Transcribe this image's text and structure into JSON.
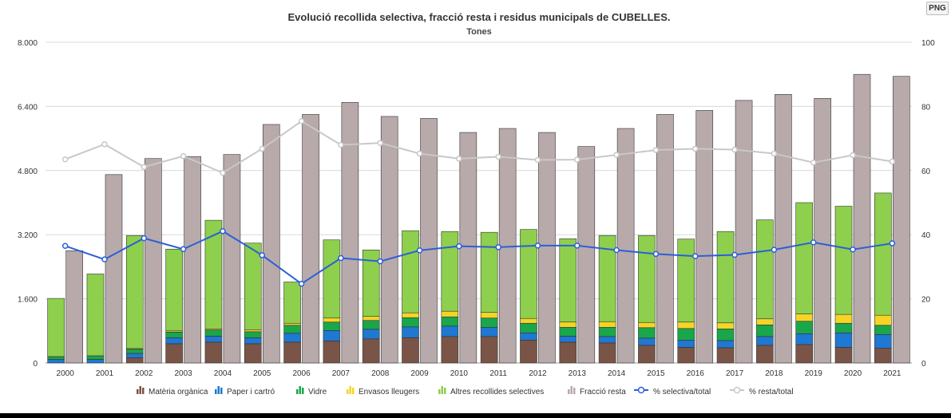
{
  "toolbar": {
    "png_label": "PNG"
  },
  "chart_data": {
    "type": "bar",
    "title": "Evolució recollida selectiva, fracció resta i residus municipals de CUBELLES.",
    "subtitle": "Tones",
    "categories": [
      "2000",
      "2001",
      "2002",
      "2003",
      "2004",
      "2005",
      "2006",
      "2007",
      "2008",
      "2009",
      "2010",
      "2011",
      "2012",
      "2013",
      "2014",
      "2015",
      "2016",
      "2017",
      "2018",
      "2019",
      "2020",
      "2021"
    ],
    "y_left": {
      "min": 0,
      "max": 8000,
      "ticks": [
        "0",
        "1.600",
        "3.200",
        "4.800",
        "6.400",
        "8.000"
      ]
    },
    "y_right": {
      "min": 0,
      "max": 100,
      "ticks": [
        "0",
        "20",
        "40",
        "60",
        "80",
        "100"
      ]
    },
    "stacked_series": [
      {
        "name": "Matèria orgànica",
        "color": "#7a5446",
        "values": [
          0,
          0,
          130,
          480,
          520,
          480,
          520,
          550,
          600,
          630,
          660,
          660,
          570,
          520,
          500,
          440,
          390,
          380,
          440,
          460,
          390,
          370
        ]
      },
      {
        "name": "Paper i cartró",
        "color": "#1f78d1",
        "values": [
          90,
          90,
          110,
          150,
          150,
          150,
          220,
          260,
          240,
          270,
          260,
          230,
          180,
          150,
          160,
          180,
          180,
          180,
          220,
          270,
          360,
          340
        ]
      },
      {
        "name": "Vidre",
        "color": "#1aa64a",
        "values": [
          70,
          90,
          100,
          140,
          150,
          150,
          200,
          210,
          220,
          230,
          230,
          230,
          240,
          220,
          230,
          260,
          290,
          290,
          290,
          310,
          240,
          230
        ]
      },
      {
        "name": "Envasos lleugers",
        "color": "#f6d426",
        "values": [
          0,
          0,
          20,
          30,
          30,
          50,
          50,
          100,
          100,
          120,
          140,
          140,
          120,
          130,
          140,
          130,
          160,
          150,
          150,
          180,
          220,
          250
        ]
      },
      {
        "name": "Altres recollides selectives",
        "color": "#8ecf4d",
        "values": [
          1450,
          2040,
          2820,
          2040,
          2710,
          2160,
          1030,
          1950,
          1660,
          2050,
          1990,
          2000,
          2220,
          2080,
          2150,
          2170,
          2070,
          2280,
          2470,
          2780,
          2700,
          3050
        ]
      }
    ],
    "resta_series": {
      "name": "Fracció resta",
      "color": "#b8aaaa",
      "values": [
        2800,
        4700,
        5100,
        5150,
        5200,
        5950,
        6200,
        6500,
        6150,
        6100,
        5750,
        5850,
        5750,
        5400,
        5850,
        6200,
        6300,
        6550,
        6700,
        6600,
        7200,
        7150
      ]
    },
    "line_series": [
      {
        "name": "% selectiva/total",
        "color": "#2b5fd9",
        "values": [
          36.5,
          32.3,
          38.9,
          35.5,
          41.1,
          33.6,
          24.7,
          32.7,
          31.7,
          35.1,
          36.4,
          36.1,
          36.6,
          36.6,
          35.2,
          34.0,
          33.3,
          33.7,
          35.3,
          37.6,
          35.4,
          37.3
        ]
      },
      {
        "name": "% resta/total",
        "color": "#c8c8c8",
        "values": [
          63.5,
          68.2,
          61.1,
          64.5,
          59.3,
          66.8,
          75.4,
          68.0,
          68.6,
          65.3,
          63.7,
          64.3,
          63.3,
          63.4,
          64.9,
          66.4,
          66.8,
          66.5,
          65.3,
          62.5,
          64.8,
          62.8
        ]
      }
    ],
    "grid": true,
    "legend_position": "bottom"
  }
}
